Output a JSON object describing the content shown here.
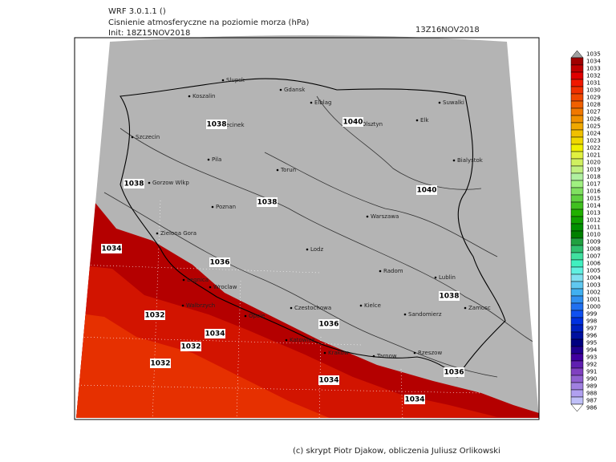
{
  "header": {
    "model": "WRF 3.0.1.1 ()",
    "title": "Cisnienie atmosferyczne na poziomie morza (hPa)",
    "init": "Init: 18Z15NOV2018",
    "valid": "13Z16NOV2018"
  },
  "cities": [
    "Slupsk",
    "Gdansk",
    "Elblag",
    "Koszalin",
    "Suwalki",
    "Szczecinek",
    "Elk",
    "Olsztyn",
    "Szczecin",
    "Bialystok",
    "Torun",
    "Pila",
    "Gorzow Wlkp",
    "Poznan",
    "Warszawa",
    "Zielona Gora",
    "Lodz",
    "Radom",
    "Lublin",
    "Legnica",
    "Wroclaw",
    "Walbrzych",
    "Czestochowa",
    "Kielce",
    "Zamosc",
    "Opole",
    "Sandomierz",
    "Katowice",
    "Krakow",
    "Tarnow",
    "Rzeszow"
  ],
  "isobar_labels": [
    1038,
    1040,
    1038,
    1040,
    1038,
    1034,
    1036,
    1038,
    1032,
    1036,
    1034,
    1032,
    1032,
    1034,
    1036,
    1034
  ],
  "colorbar": {
    "levels": [
      1035,
      1034,
      1033,
      1032,
      1031,
      1030,
      1029,
      1028,
      1027,
      1026,
      1025,
      1024,
      1023,
      1022,
      1021,
      1020,
      1019,
      1018,
      1017,
      1016,
      1015,
      1014,
      1013,
      1012,
      1011,
      1010,
      1009,
      1008,
      1007,
      1006,
      1005,
      1004,
      1003,
      1002,
      1001,
      1000,
      999,
      998,
      997,
      996,
      995,
      994,
      993,
      992,
      991,
      990,
      989,
      988,
      987,
      986
    ],
    "colors": [
      "#a0a0a0",
      "#a00000",
      "#c00000",
      "#e00000",
      "#f01800",
      "#f03000",
      "#f04800",
      "#f06000",
      "#f07800",
      "#f09000",
      "#f0a800",
      "#f0c000",
      "#f0d800",
      "#f0f000",
      "#e0f040",
      "#d0f060",
      "#c0f080",
      "#b0f0a0",
      "#a0f080",
      "#80e060",
      "#60d040",
      "#40c020",
      "#20b000",
      "#10a000",
      "#009000",
      "#008000",
      "#20a040",
      "#30c070",
      "#40e0a0",
      "#40f0c0",
      "#60f0e0",
      "#80e0f0",
      "#60c8f0",
      "#40b0f0",
      "#3090f0",
      "#2070f0",
      "#1050f0",
      "#0030e0",
      "#0020c0",
      "#0010a0",
      "#000080",
      "#200090",
      "#4000a0",
      "#6020b0",
      "#8040c0",
      "#9060d0",
      "#a080e0",
      "#b0a0f0",
      "#c0c0f8",
      "#ffffff"
    ]
  },
  "credit": "(c) skrypt Piotr Djakow, obliczenia Juliusz Orlikowski"
}
